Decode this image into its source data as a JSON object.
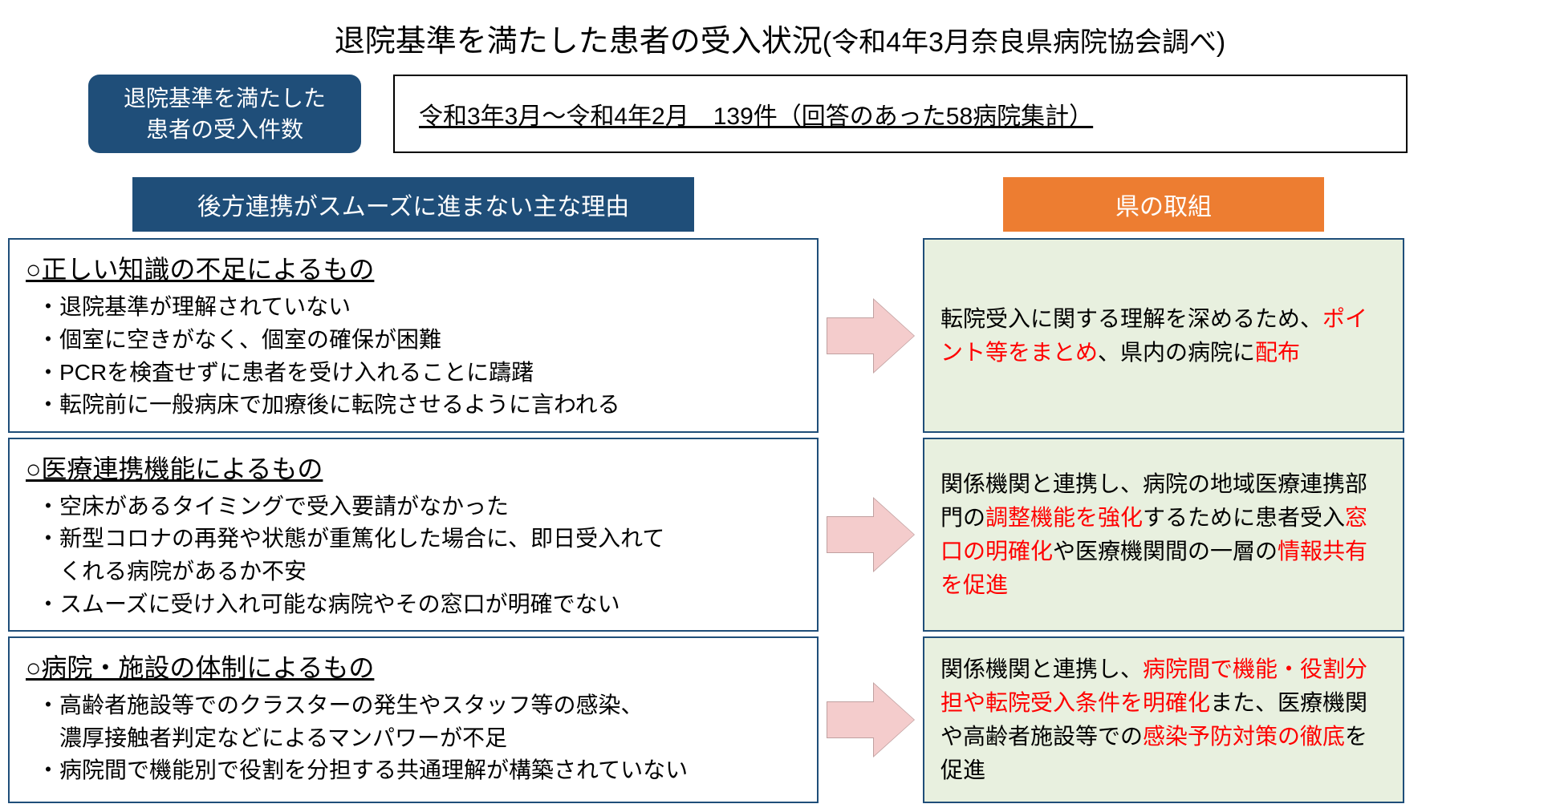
{
  "title_main": "退院基準を満たした患者の受入状況",
  "title_sub": "(令和4年3月奈良県病院協会調べ)",
  "header": {
    "badge_line1": "退院基準を満たした",
    "badge_line2": "患者の受入件数",
    "stats": "令和3年3月～令和4年2月　139件（回答のあった58病院集計）"
  },
  "section_headers": {
    "left": "後方連携がスムーズに進まない主な理由",
    "right": "県の取組"
  },
  "rows": [
    {
      "reason_title": "○正しい知識の不足によるもの",
      "reason_items": [
        "・退院基準が理解されていない",
        "・個室に空きがなく、個室の確保が困難",
        "・PCRを検査せずに患者を受け入れることに躊躇",
        "・転院前に一般病床で加療後に転院させるように言われる"
      ],
      "action_parts": [
        {
          "t": "転院受入に関する理解を深めるため、",
          "red": false
        },
        {
          "t": "ポイント等をまとめ",
          "red": true
        },
        {
          "t": "、県内の病院に",
          "red": false
        },
        {
          "t": "配布",
          "red": true
        }
      ]
    },
    {
      "reason_title": "○医療連携機能によるもの",
      "reason_items": [
        "・空床があるタイミングで受入要請がなかった",
        "・新型コロナの再発や状態が重篤化した場合に、即日受入れて",
        "　くれる病院があるか不安",
        "・スムーズに受け入れ可能な病院やその窓口が明確でない"
      ],
      "action_parts": [
        {
          "t": "関係機関と連携し、病院の地域医療連携部門の",
          "red": false
        },
        {
          "t": "調整機能を強化",
          "red": true
        },
        {
          "t": "するために患者受入",
          "red": false
        },
        {
          "t": "窓口の明確化",
          "red": true
        },
        {
          "t": "や医療機関間の一層の",
          "red": false
        },
        {
          "t": "情報共有を促進",
          "red": true
        }
      ]
    },
    {
      "reason_title": "○病院・施設の体制によるもの",
      "reason_items": [
        "・高齢者施設等でのクラスターの発生やスタッフ等の感染、",
        "　濃厚接触者判定などによるマンパワーが不足",
        "・病院間で機能別で役割を分担する共通理解が構築されていない"
      ],
      "action_parts": [
        {
          "t": "関係機関と連携し、",
          "red": false
        },
        {
          "t": "病院間で機能・役割分担や転院受入条件を明確化",
          "red": true
        },
        {
          "t": "また、医療機関や高齢者施設等での",
          "red": false
        },
        {
          "t": "感染予防対策の徹底",
          "red": true
        },
        {
          "t": "を促進",
          "red": false
        }
      ]
    }
  ],
  "colors": {
    "blue_bg": "#1f4e79",
    "orange_bg": "#ed7d31",
    "green_bg": "#e8f0df",
    "arrow_fill": "#f4cccc",
    "red_text": "#ff0000"
  }
}
